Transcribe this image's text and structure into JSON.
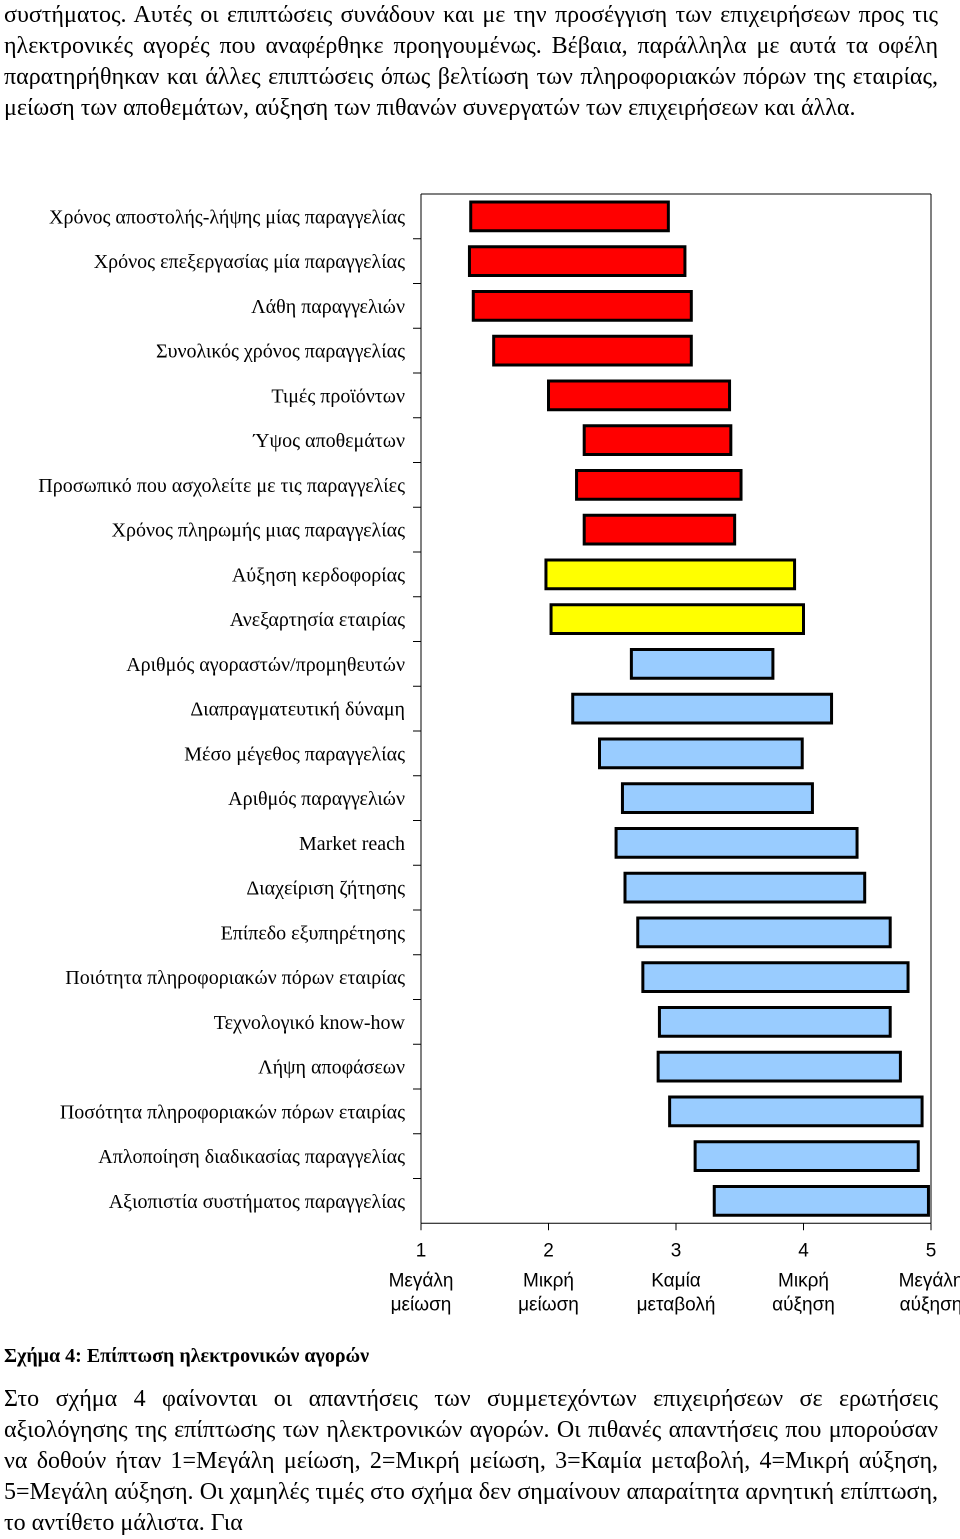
{
  "top_paragraph": "συστήματος. Αυτές οι επιπτώσεις συνάδουν και με την προσέγγιση των επιχειρήσεων προς τις ηλεκτρονικές αγορές που αναφέρθηκε προηγουμένως. Βέβαια, παράλληλα με αυτά τα οφέλη παρατηρήθηκαν και άλλες επιπτώσεις όπως βελτίωση των πληροφοριακών πόρων της εταιρίας, μείωση των αποθεμάτων, αύξηση των πιθανών συνεργατών των επιχειρήσεων και άλλα.",
  "figure_caption": "Σχήμα 4: Επίπτωση ηλεκτρονικών αγορών",
  "bottom_paragraph": "Στο σχήμα 4 φαίνονται οι απαντήσεις των συμμετεχόντων επιχειρήσεων σε ερωτήσεις αξιολόγησης της επίπτωσης των ηλεκτρονικών αγορών. Οι πιθανές απαντήσεις που μπορούσαν να δοθούν ήταν 1=Μεγάλη μείωση, 2=Μικρή μείωση, 3=Καμία μεταβολή, 4=Μικρή αύξηση, 5=Μεγάλη αύξηση. Οι χαμηλές τιμές στο σχήμα δεν σημαίνουν απαραίτητα αρνητική επίπτωση, το αντίθετο μάλιστα. Για",
  "colors": {
    "red": "#ff0000",
    "yellow": "#ffff00",
    "blue": "#99ccff",
    "outline": "#000000"
  },
  "chart_data": {
    "type": "bar",
    "subtype": "floating-horizontal",
    "xlim": [
      1,
      5
    ],
    "x_ticks": [
      {
        "value": 1,
        "number": "1",
        "line1": "Μεγάλη",
        "line2": "μείωση"
      },
      {
        "value": 2,
        "number": "2",
        "line1": "Μικρή",
        "line2": "μείωση"
      },
      {
        "value": 3,
        "number": "3",
        "line1": "Καμία",
        "line2": "μεταβολή"
      },
      {
        "value": 4,
        "number": "4",
        "line1": "Μικρή",
        "line2": "αύξηση"
      },
      {
        "value": 5,
        "number": "5",
        "line1": "Μεγάλη",
        "line2": "αύξηση"
      }
    ],
    "grid": false,
    "legend": "none",
    "bars": [
      {
        "label": "Χρόνος αποστολής-λήψης μίας παραγγελίας",
        "start": 1.39,
        "end": 2.94,
        "color": "red"
      },
      {
        "label": "Χρόνος επεξεργασίας μία παραγγελίας",
        "start": 1.38,
        "end": 3.07,
        "color": "red"
      },
      {
        "label": "Λάθη παραγγελιών",
        "start": 1.41,
        "end": 3.12,
        "color": "red"
      },
      {
        "label": "Συνολικός χρόνος παραγγελίας",
        "start": 1.57,
        "end": 3.12,
        "color": "red"
      },
      {
        "label": "Τιμές προϊόντων",
        "start": 2.0,
        "end": 3.42,
        "color": "red"
      },
      {
        "label": "Ύψος αποθεμάτων",
        "start": 2.28,
        "end": 3.43,
        "color": "red"
      },
      {
        "label": "Προσωπικό που ασχολείτε με τις παραγγελίες",
        "start": 2.22,
        "end": 3.51,
        "color": "red"
      },
      {
        "label": "Χρόνος πληρωμής μιας παραγγελίας",
        "start": 2.28,
        "end": 3.46,
        "color": "red"
      },
      {
        "label": "Αύξηση κερδοφορίας",
        "start": 1.98,
        "end": 3.93,
        "color": "yellow"
      },
      {
        "label": "Ανεξαρτησία εταιρίας",
        "start": 2.02,
        "end": 4.0,
        "color": "yellow"
      },
      {
        "label": "Αριθμός αγοραστών/προμηθευτών",
        "start": 2.65,
        "end": 3.76,
        "color": "blue"
      },
      {
        "label": "Διαπραγματευτική δύναμη",
        "start": 2.19,
        "end": 4.22,
        "color": "blue"
      },
      {
        "label": "Μέσο μέγεθος παραγγελίας",
        "start": 2.4,
        "end": 3.99,
        "color": "blue"
      },
      {
        "label": "Αριθμός παραγγελιών",
        "start": 2.58,
        "end": 4.07,
        "color": "blue"
      },
      {
        "label": "Market reach",
        "start": 2.53,
        "end": 4.42,
        "color": "blue"
      },
      {
        "label": "Διαχείριση ζήτησης",
        "start": 2.6,
        "end": 4.48,
        "color": "blue"
      },
      {
        "label": "Επίπεδο εξυπηρέτησης",
        "start": 2.7,
        "end": 4.68,
        "color": "blue"
      },
      {
        "label": "Ποιότητα πληροφοριακών πόρων εταιρίας",
        "start": 2.74,
        "end": 4.82,
        "color": "blue"
      },
      {
        "label": "Τεχνολογικό know-how",
        "start": 2.87,
        "end": 4.68,
        "color": "blue"
      },
      {
        "label": "Λήψη αποφάσεων",
        "start": 2.86,
        "end": 4.76,
        "color": "blue"
      },
      {
        "label": "Ποσότητα πληροφοριακών πόρων εταιρίας",
        "start": 2.95,
        "end": 4.93,
        "color": "blue"
      },
      {
        "label": "Απλοποίηση διαδικασίας παραγγελίας",
        "start": 3.15,
        "end": 4.9,
        "color": "blue"
      },
      {
        "label": "Αξιοπιστία συστήματος παραγγελίας",
        "start": 3.3,
        "end": 4.98,
        "color": "blue"
      }
    ]
  }
}
